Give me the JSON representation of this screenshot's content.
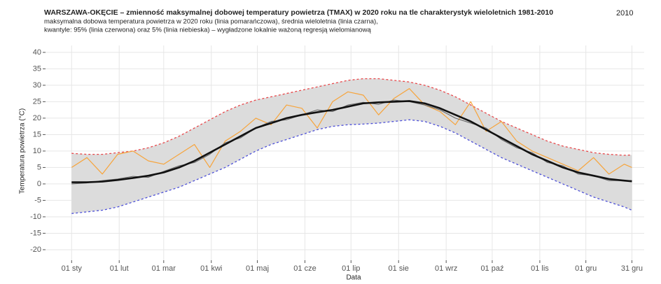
{
  "chart_data": {
    "type": "line",
    "title": "WARSZAWA-OKĘCIE – zmienność maksymalnej dobowej temperatury powietrza (TMAX) w 2020 roku na tle charakterystyk wieloletnich 1981-2010",
    "subtitle": [
      "maksymalna dobowa temperatura powietrza w 2020 roku (linia pomarańczowa), średnia wieloletnia (linia czarna),",
      "kwantyle: 95% (linia czerwona) oraz 5% (linia niebieska) – wygładzone lokalnie ważoną regresją wielomianową"
    ],
    "corner_text": "2010",
    "x_label": "Data",
    "y_label": "Temperatura powietrza (°C)",
    "x": [
      1,
      11,
      21,
      31,
      41,
      51,
      61,
      71,
      81,
      91,
      101,
      111,
      121,
      131,
      141,
      151,
      161,
      171,
      181,
      191,
      201,
      211,
      221,
      231,
      241,
      251,
      261,
      271,
      281,
      291,
      301,
      311,
      321,
      331,
      341,
      351,
      361,
      366
    ],
    "xlim": [
      -16,
      374
    ],
    "xticks": [
      {
        "value": 1,
        "label": "01 sty"
      },
      {
        "value": 32,
        "label": "01 lut"
      },
      {
        "value": 61,
        "label": "01 mar"
      },
      {
        "value": 92,
        "label": "01 kwi"
      },
      {
        "value": 122,
        "label": "01 maj"
      },
      {
        "value": 153,
        "label": "01 cze"
      },
      {
        "value": 183,
        "label": "01 lip"
      },
      {
        "value": 214,
        "label": "01 sie"
      },
      {
        "value": 245,
        "label": "01 wrz"
      },
      {
        "value": 275,
        "label": "01 paź"
      },
      {
        "value": 306,
        "label": "01 lis"
      },
      {
        "value": 336,
        "label": "01 gru"
      },
      {
        "value": 366,
        "label": "31 gru"
      }
    ],
    "ylim": [
      -23.2,
      42.1
    ],
    "yticks": [
      -20,
      -15,
      -10,
      -5,
      0,
      5,
      10,
      15,
      20,
      25,
      30,
      35,
      40
    ],
    "grid": true,
    "band_color": "#dcdcdc",
    "series": [
      {
        "color": "#e8474a",
        "dash": true,
        "width": 1.3,
        "values": [
          9.3,
          9,
          9,
          9.5,
          10,
          11,
          12.5,
          14.5,
          17,
          19.5,
          22,
          24,
          25.5,
          26.5,
          27.5,
          28.5,
          29.5,
          30.5,
          31.5,
          32,
          32,
          31.5,
          31,
          30,
          28.5,
          26.5,
          24,
          21.5,
          19,
          17,
          15,
          13,
          11.5,
          10.5,
          9.5,
          9,
          8.7,
          8.8
        ]
      },
      {
        "color": "#4c4fd8",
        "dash": true,
        "width": 1.3,
        "values": [
          -9,
          -8.5,
          -8,
          -7,
          -5.5,
          -4,
          -2.5,
          -1,
          1,
          3,
          5,
          7.5,
          10,
          12,
          13.5,
          15,
          16.5,
          17.5,
          18,
          18.2,
          18.5,
          19,
          19.5,
          19,
          17.5,
          15.5,
          13,
          10.5,
          8,
          6,
          4,
          2,
          0,
          -2,
          -4,
          -5.5,
          -7,
          -8
        ]
      },
      {
        "color": "#f7a43b",
        "dash": false,
        "width": 1.2,
        "values": [
          5,
          8,
          3,
          9,
          10,
          7,
          6,
          9,
          12,
          5,
          13,
          16,
          20,
          18,
          24,
          23,
          17,
          25,
          28,
          27,
          21,
          26,
          29,
          24,
          22,
          18,
          25,
          16,
          19,
          13,
          10,
          8,
          6,
          4,
          8,
          3,
          6,
          5
        ]
      },
      {
        "color": "#666666",
        "dash": false,
        "width": 1.1,
        "values": [
          0,
          0.3,
          1,
          1.5,
          2.3,
          2,
          3.8,
          5.5,
          6.5,
          9,
          12.5,
          14,
          17,
          19,
          19.5,
          21,
          22.5,
          22,
          24,
          24.8,
          24.2,
          25.5,
          25,
          24,
          22.5,
          20,
          18.5,
          17,
          13.5,
          11,
          9.5,
          6.5,
          5.5,
          3,
          2.5,
          1,
          1,
          1
        ]
      },
      {
        "color": "#111111",
        "dash": false,
        "width": 2.6,
        "values": [
          0.5,
          0.5,
          0.7,
          1.2,
          1.8,
          2.5,
          3.5,
          5,
          7,
          9.5,
          12,
          14.5,
          17,
          18.5,
          20,
          21,
          21.8,
          22.5,
          23.5,
          24.5,
          24.8,
          25,
          25.2,
          24.5,
          23,
          21,
          19,
          16.5,
          14,
          11.5,
          9,
          7,
          5,
          3.5,
          2.5,
          1.5,
          1,
          0.8
        ]
      }
    ]
  }
}
